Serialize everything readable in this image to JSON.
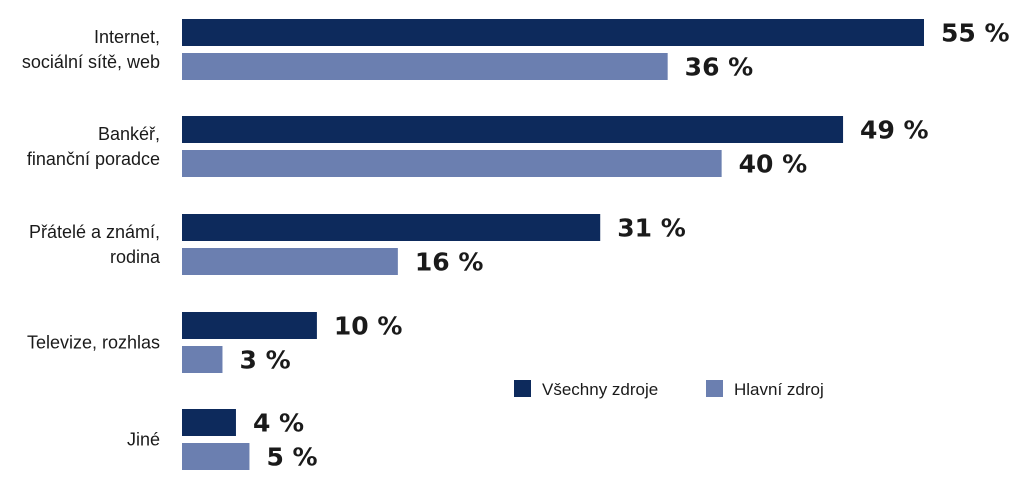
{
  "chart_data": {
    "type": "bar",
    "orientation": "horizontal",
    "categories": [
      [
        "Internet,",
        "sociální sítě, web"
      ],
      [
        "Bankéř,",
        "finanční poradce"
      ],
      [
        "Přátelé a známí,",
        "rodina"
      ],
      [
        "Televize, rozhlas"
      ],
      [
        "Jiné"
      ]
    ],
    "series": [
      {
        "name": "Všechny zdroje",
        "color": "#0d2a5c",
        "values": [
          55,
          49,
          31,
          10,
          4
        ]
      },
      {
        "name": "Hlavní zdroj",
        "color": "#6b7fb0",
        "values": [
          36,
          40,
          16,
          3,
          5
        ]
      }
    ],
    "value_suffix": " %",
    "xlim": [
      0,
      55
    ],
    "grid": false,
    "legend_position": "bottom-right"
  }
}
